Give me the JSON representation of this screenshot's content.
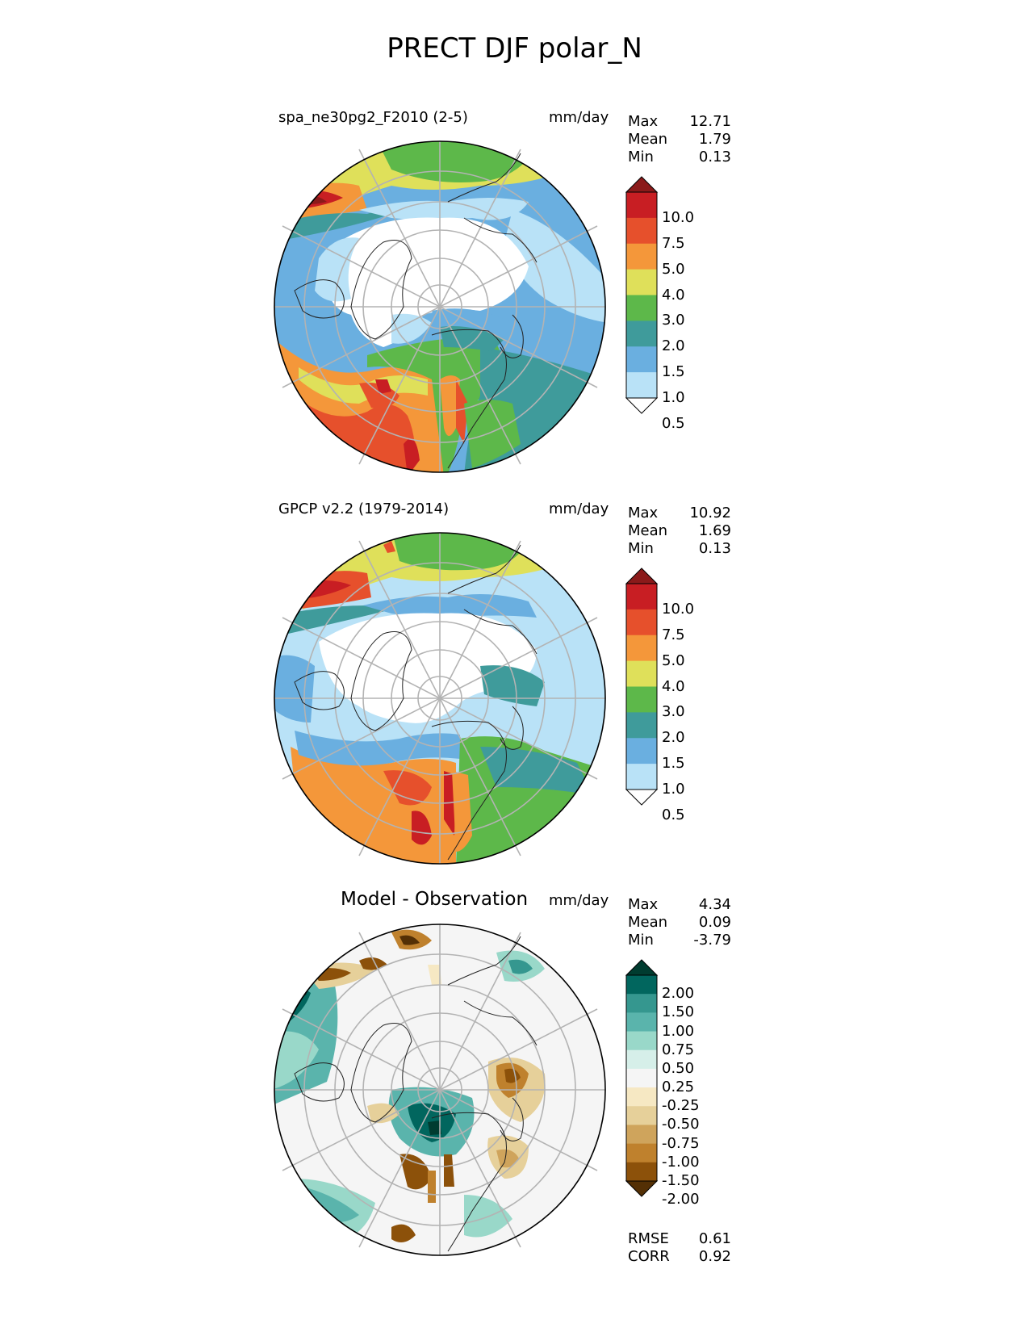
{
  "title": "PRECT DJF polar_N",
  "panels": [
    {
      "id": "test",
      "left_title": "spa_ne30pg2_F2010 (2-5)",
      "center_title": "",
      "units": "mm/day",
      "stats": [
        {
          "label": "Max",
          "value": "12.71"
        },
        {
          "label": "Mean",
          "value": "1.79"
        },
        {
          "label": "Min",
          "value": "0.13"
        }
      ],
      "colorbar": {
        "labels": [
          "10.0",
          "7.5",
          "5.0",
          "4.0",
          "3.0",
          "2.0",
          "1.5",
          "1.0",
          "0.5"
        ],
        "colors": [
          "#8b1a1a",
          "#c81e23",
          "#e6502c",
          "#f4973a",
          "#dfe05a",
          "#5db84a",
          "#3f9b9b",
          "#6aafe0",
          "#b9e2f7",
          "#ffffff"
        ]
      }
    },
    {
      "id": "reference",
      "left_title": "GPCP v2.2 (1979-2014)",
      "center_title": "",
      "units": "mm/day",
      "stats": [
        {
          "label": "Max",
          "value": "10.92"
        },
        {
          "label": "Mean",
          "value": "1.69"
        },
        {
          "label": "Min",
          "value": "0.13"
        }
      ],
      "colorbar": {
        "labels": [
          "10.0",
          "7.5",
          "5.0",
          "4.0",
          "3.0",
          "2.0",
          "1.5",
          "1.0",
          "0.5"
        ],
        "colors": [
          "#8b1a1a",
          "#c81e23",
          "#e6502c",
          "#f4973a",
          "#dfe05a",
          "#5db84a",
          "#3f9b9b",
          "#6aafe0",
          "#b9e2f7",
          "#ffffff"
        ]
      }
    },
    {
      "id": "diff",
      "left_title": "",
      "center_title": "Model - Observation",
      "units": "mm/day",
      "stats": [
        {
          "label": "Max",
          "value": "4.34"
        },
        {
          "label": "Mean",
          "value": "0.09"
        },
        {
          "label": "Min",
          "value": "-3.79"
        }
      ],
      "extra_stats": [
        {
          "label": "RMSE",
          "value": "0.61"
        },
        {
          "label": "CORR",
          "value": "0.92"
        }
      ],
      "colorbar": {
        "labels": [
          "2.00",
          "1.50",
          "1.00",
          "0.75",
          "0.50",
          "0.25",
          "-0.25",
          "-0.50",
          "-0.75",
          "-1.00",
          "-1.50",
          "-2.00"
        ],
        "colors": [
          "#003c30",
          "#01665e",
          "#35978f",
          "#5ab4ac",
          "#99d8c9",
          "#d6efe9",
          "#f5f5f5",
          "#f6e8c3",
          "#e6d09a",
          "#cfa45c",
          "#bf812d",
          "#8c510a",
          "#543005"
        ]
      }
    }
  ]
}
